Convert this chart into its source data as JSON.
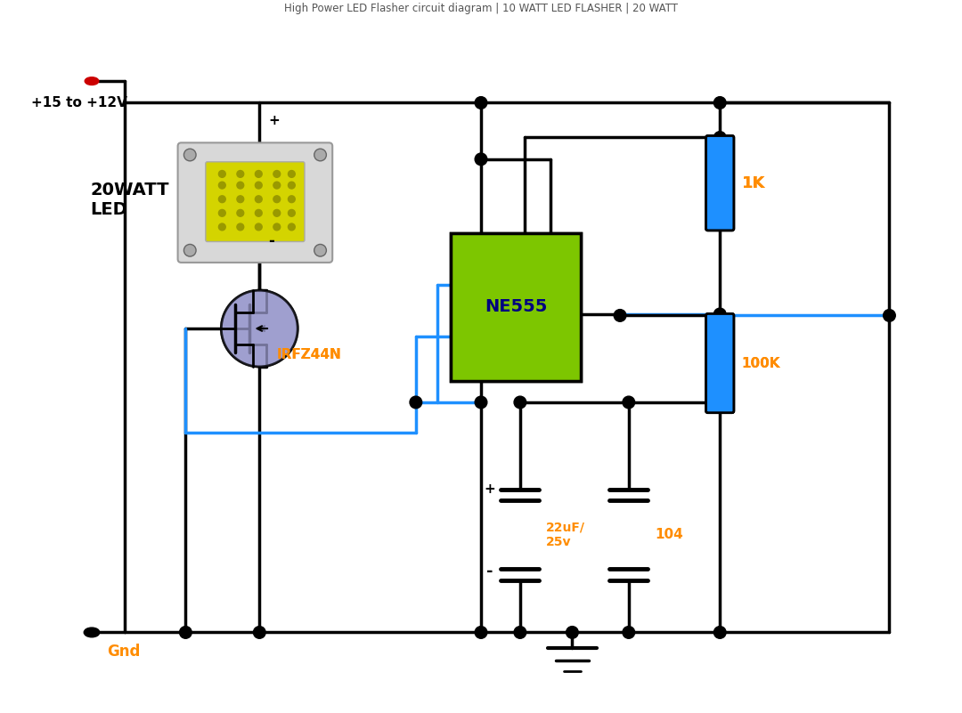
{
  "bg_color": "#ffffff",
  "line_color": "#000000",
  "blue_color": "#1E90FF",
  "green_color": "#7DC600",
  "orange_color": "#FF8C00",
  "red_color": "#CC0000",
  "purple_color": "#9999CC",
  "ne555_label": "NE555",
  "mosfet_label": "IRFZ44N",
  "r1_label": "1K",
  "r2_label": "100K",
  "cap1_label": "22uF/\n25v",
  "cap2_label": "104",
  "led_label": "20WATT\nLED",
  "vcc_label": "+15 to +12V",
  "gnd_label": "Gnd",
  "title": "High Power LED Flasher circuit diagram | 10 WATT LED FLASHER | 20 WATT"
}
